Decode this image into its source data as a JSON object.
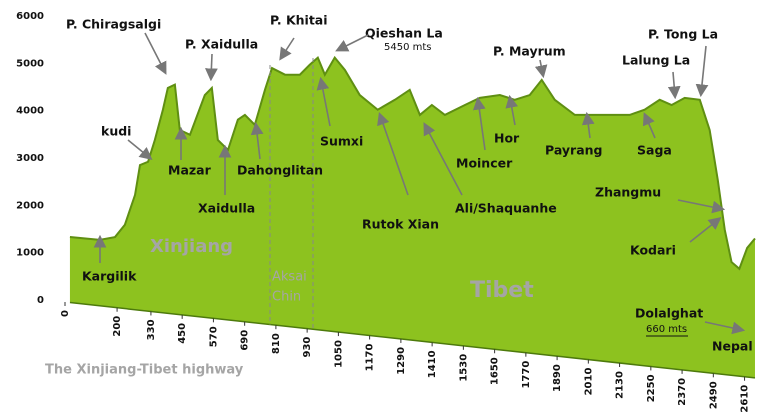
{
  "chart_data": {
    "type": "area",
    "x": [
      19,
      134,
      192,
      230,
      269,
      288,
      319,
      345,
      376,
      395,
      422,
      441,
      480,
      537,
      564,
      587,
      626,
      664,
      691,
      729,
      768,
      795,
      845,
      902,
      940,
      971,
      998,
      1036,
      1075,
      1132,
      1201,
      1267,
      1324,
      1363,
      1409,
      1459,
      1536,
      1593,
      1670,
      1727,
      1785,
      1831,
      1881,
      1958,
      2054,
      2169,
      2226,
      2284,
      2330,
      2380,
      2438,
      2476,
      2507,
      2534,
      2560,
      2590,
      2620,
      2650
    ],
    "values": [
      1330,
      1270,
      1330,
      1590,
      2220,
      2850,
      2920,
      3380,
      4020,
      4480,
      4550,
      3590,
      3490,
      4330,
      4480,
      3380,
      3170,
      3810,
      3910,
      3700,
      4440,
      4900,
      4760,
      4760,
      4970,
      5120,
      4760,
      5120,
      4860,
      4330,
      4020,
      4230,
      4440,
      3910,
      4120,
      3910,
      4120,
      4270,
      4330,
      4230,
      4330,
      4650,
      4230,
      3910,
      3910,
      3910,
      4020,
      4230,
      4120,
      4270,
      4230,
      3590,
      2540,
      1480,
      800,
      660,
      1100,
      1300
    ],
    "color": "#8dc21f",
    "xlim": [
      0,
      2700
    ],
    "ylim": [
      0,
      6000
    ],
    "xticks": [
      0,
      200,
      330,
      450,
      570,
      690,
      810,
      930,
      1050,
      1170,
      1290,
      1410,
      1530,
      1650,
      1770,
      1890,
      2010,
      2130,
      2250,
      2370,
      2490,
      2610
    ],
    "yticks": [
      0,
      1000,
      2000,
      3000,
      4000,
      5000,
      6000
    ],
    "annotations": [
      "P. Chiragsalgi",
      "P. Xaidulla",
      "P. Khitai",
      "Qieshan La",
      "5450 mts",
      "P. Mayrum",
      "P. Tong La",
      "Lalung La",
      "kudi",
      "Mazar",
      "Xaidulla",
      "Dahonglitan",
      "Sumxi",
      "Rutok Xian",
      "Ali/Shaquanhe",
      "Hor",
      "Moincer",
      "Payrang",
      "Saga",
      "Zhangmu",
      "Kodari",
      "Dolalghat",
      "660 mts",
      "Nepal",
      "Kargilik"
    ],
    "regions": [
      "Xinjiang",
      "Aksai",
      "Chin",
      "Tibet"
    ],
    "caption": "The Xinjiang-Tibet highway"
  }
}
